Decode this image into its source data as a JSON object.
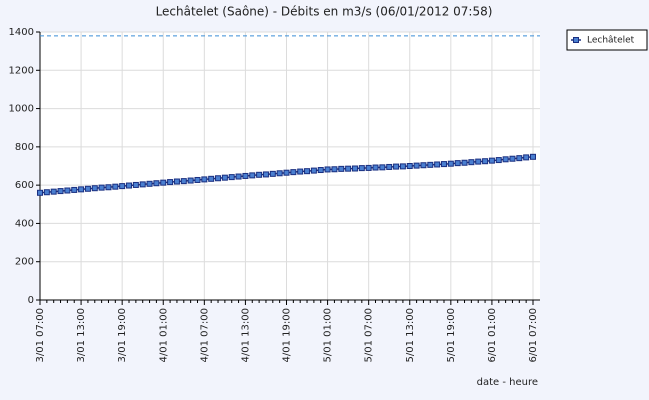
{
  "chart_data": {
    "type": "line",
    "title": "Lechâtelet (Saône) - Débits en m3/s (06/01/2012 07:58)",
    "x_label": "date - heure",
    "categories": [
      "3/01 07:00",
      null,
      null,
      null,
      null,
      null,
      "3/01 13:00",
      null,
      null,
      null,
      null,
      null,
      "3/01 19:00",
      null,
      null,
      null,
      null,
      null,
      "4/01 01:00",
      null,
      null,
      null,
      null,
      null,
      "4/01 07:00",
      null,
      null,
      null,
      null,
      null,
      "4/01 13:00",
      null,
      null,
      null,
      null,
      null,
      "4/01 19:00",
      null,
      null,
      null,
      null,
      null,
      "5/01 01:00",
      null,
      null,
      null,
      null,
      null,
      "5/01 07:00",
      null,
      null,
      null,
      null,
      null,
      "5/01 13:00",
      null,
      null,
      null,
      null,
      null,
      "5/01 19:00",
      null,
      null,
      null,
      null,
      null,
      "6/01 01:00",
      null,
      null,
      null,
      null,
      null,
      "6/01 07:00"
    ],
    "series": [
      {
        "name": "Lechâtelet",
        "color": "#1a2f80",
        "values": [
          560,
          563,
          566,
          569,
          572,
          575,
          578,
          581,
          584,
          587,
          589,
          592,
          595,
          598,
          601,
          604,
          607,
          610,
          613,
          616,
          619,
          621,
          624,
          627,
          630,
          633,
          636,
          639,
          642,
          645,
          648,
          651,
          654,
          656,
          659,
          662,
          665,
          668,
          671,
          673,
          676,
          679,
          682,
          683,
          685,
          686,
          687,
          689,
          690,
          692,
          693,
          695,
          697,
          698,
          700,
          702,
          704,
          706,
          708,
          710,
          712,
          715,
          717,
          720,
          723,
          725,
          728,
          731,
          735,
          738,
          741,
          745,
          748
        ]
      }
    ],
    "hline": 1380,
    "ylim": [
      0,
      1400
    ],
    "yticks": [
      0,
      200,
      400,
      600,
      800,
      1000,
      1200,
      1400
    ],
    "grid": true,
    "legend": "top-right"
  }
}
